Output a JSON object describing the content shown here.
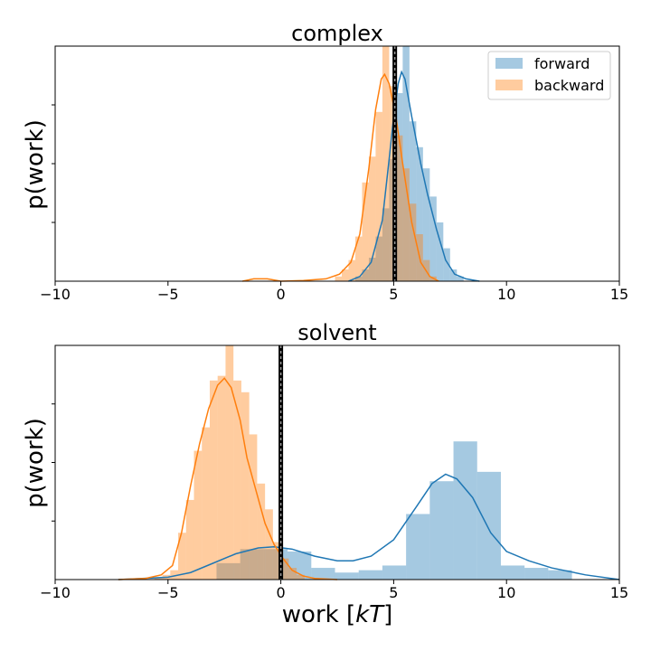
{
  "chart_data": [
    {
      "type": "histogram",
      "title": "complex",
      "xlabel": "",
      "ylabel": "p(work)",
      "xlim": [
        -10,
        15
      ],
      "ylim": [
        0,
        1.0
      ],
      "xticks": [
        -10,
        -5,
        0,
        5,
        10,
        15
      ],
      "xtick_labels": [
        "−10",
        "−5",
        "0",
        "5",
        "10",
        "15"
      ],
      "legend_position": "top-right",
      "vline": 5.05,
      "series": [
        {
          "name": "forward",
          "color": "#1f77b4",
          "bin_width": 0.3,
          "bins": [
            [
              3.3,
              0.02
            ],
            [
              3.6,
              0.05
            ],
            [
              3.9,
              0.1
            ],
            [
              4.2,
              0.19
            ],
            [
              4.5,
              0.31
            ],
            [
              4.8,
              0.52
            ],
            [
              5.1,
              0.8
            ],
            [
              5.4,
              1.0
            ],
            [
              5.7,
              0.68
            ],
            [
              6.0,
              0.57
            ],
            [
              6.3,
              0.48
            ],
            [
              6.6,
              0.36
            ],
            [
              6.9,
              0.25
            ],
            [
              7.2,
              0.14
            ],
            [
              7.5,
              0.05
            ],
            [
              7.8,
              0.02
            ]
          ],
          "kde": [
            [
              3.0,
              0.0
            ],
            [
              3.5,
              0.02
            ],
            [
              4.0,
              0.08
            ],
            [
              4.5,
              0.26
            ],
            [
              4.8,
              0.52
            ],
            [
              5.0,
              0.7
            ],
            [
              5.2,
              0.84
            ],
            [
              5.35,
              0.89
            ],
            [
              5.5,
              0.86
            ],
            [
              5.8,
              0.7
            ],
            [
              6.2,
              0.5
            ],
            [
              6.5,
              0.37
            ],
            [
              6.9,
              0.22
            ],
            [
              7.3,
              0.09
            ],
            [
              7.7,
              0.03
            ],
            [
              8.2,
              0.01
            ],
            [
              8.8,
              0.0
            ]
          ]
        },
        {
          "name": "backward",
          "color": "#ff7f0e",
          "bin_width": 0.3,
          "bins": [
            [
              2.4,
              0.02
            ],
            [
              2.7,
              0.05
            ],
            [
              3.0,
              0.09
            ],
            [
              3.3,
              0.19
            ],
            [
              3.6,
              0.42
            ],
            [
              3.9,
              0.53
            ],
            [
              4.2,
              0.72
            ],
            [
              4.5,
              1.0
            ],
            [
              4.8,
              0.83
            ],
            [
              5.1,
              0.62
            ],
            [
              5.4,
              0.48
            ],
            [
              5.7,
              0.33
            ],
            [
              6.0,
              0.2
            ],
            [
              6.3,
              0.09
            ],
            [
              6.6,
              0.02
            ]
          ],
          "kde": [
            [
              -1.7,
              0.0
            ],
            [
              -1.2,
              0.01
            ],
            [
              -0.6,
              0.01
            ],
            [
              0.0,
              0.0
            ],
            [
              1.0,
              0.003
            ],
            [
              2.0,
              0.01
            ],
            [
              2.6,
              0.03
            ],
            [
              3.1,
              0.08
            ],
            [
              3.5,
              0.2
            ],
            [
              3.9,
              0.48
            ],
            [
              4.2,
              0.73
            ],
            [
              4.45,
              0.86
            ],
            [
              4.6,
              0.88
            ],
            [
              4.8,
              0.84
            ],
            [
              5.1,
              0.7
            ],
            [
              5.4,
              0.5
            ],
            [
              5.8,
              0.25
            ],
            [
              6.2,
              0.08
            ],
            [
              6.6,
              0.02
            ],
            [
              7.0,
              0.0
            ]
          ]
        }
      ]
    },
    {
      "type": "histogram",
      "title": "solvent",
      "xlabel": "work [kT]",
      "ylabel": "p(work)",
      "xlim": [
        -10,
        15
      ],
      "ylim": [
        0,
        1.0
      ],
      "xticks": [
        -10,
        -5,
        0,
        5,
        10,
        15
      ],
      "xtick_labels": [
        "−10",
        "−5",
        "0",
        "5",
        "10",
        "15"
      ],
      "vline": 0.0,
      "series": [
        {
          "name": "forward",
          "color": "#1f77b4",
          "bin_width": 1.05,
          "bins": [
            [
              -2.85,
              0.07
            ],
            [
              -1.8,
              0.13
            ],
            [
              -0.75,
              0.13
            ],
            [
              0.3,
              0.12
            ],
            [
              1.35,
              0.05
            ],
            [
              2.4,
              0.03
            ],
            [
              3.45,
              0.04
            ],
            [
              4.5,
              0.06
            ],
            [
              5.55,
              0.28
            ],
            [
              6.6,
              0.42
            ],
            [
              7.65,
              0.59
            ],
            [
              8.7,
              0.46
            ],
            [
              9.75,
              0.06
            ],
            [
              10.8,
              0.05
            ],
            [
              11.85,
              0.04
            ],
            [
              12.9,
              0.0
            ]
          ],
          "kde": [
            [
              -7.2,
              0.0
            ],
            [
              -5.0,
              0.01
            ],
            [
              -4.0,
              0.03
            ],
            [
              -3.0,
              0.07
            ],
            [
              -2.0,
              0.11
            ],
            [
              -1.0,
              0.135
            ],
            [
              -0.3,
              0.14
            ],
            [
              0.5,
              0.13
            ],
            [
              1.5,
              0.1
            ],
            [
              2.5,
              0.08
            ],
            [
              3.2,
              0.08
            ],
            [
              4.0,
              0.1
            ],
            [
              5.0,
              0.17
            ],
            [
              6.0,
              0.31
            ],
            [
              6.7,
              0.41
            ],
            [
              7.3,
              0.45
            ],
            [
              7.8,
              0.43
            ],
            [
              8.5,
              0.35
            ],
            [
              9.3,
              0.2
            ],
            [
              10.0,
              0.12
            ],
            [
              11.0,
              0.08
            ],
            [
              12.0,
              0.05
            ],
            [
              13.5,
              0.02
            ],
            [
              15.0,
              0.0
            ]
          ]
        },
        {
          "name": "backward",
          "color": "#ff7f0e",
          "bin_width": 0.35,
          "bins": [
            [
              -5.6,
              0.01
            ],
            [
              -5.25,
              0.02
            ],
            [
              -4.9,
              0.04
            ],
            [
              -4.55,
              0.2
            ],
            [
              -4.2,
              0.34
            ],
            [
              -3.85,
              0.55
            ],
            [
              -3.5,
              0.65
            ],
            [
              -3.15,
              0.85
            ],
            [
              -2.8,
              0.87
            ],
            [
              -2.45,
              1.0
            ],
            [
              -2.1,
              0.85
            ],
            [
              -1.75,
              0.8
            ],
            [
              -1.4,
              0.62
            ],
            [
              -1.05,
              0.41
            ],
            [
              -0.7,
              0.3
            ],
            [
              -0.35,
              0.16
            ],
            [
              0.0,
              0.09
            ],
            [
              0.35,
              0.05
            ],
            [
              0.7,
              0.02
            ]
          ],
          "kde": [
            [
              -7.2,
              0.0
            ],
            [
              -6.0,
              0.005
            ],
            [
              -5.3,
              0.02
            ],
            [
              -4.8,
              0.06
            ],
            [
              -4.4,
              0.2
            ],
            [
              -4.0,
              0.4
            ],
            [
              -3.6,
              0.58
            ],
            [
              -3.2,
              0.73
            ],
            [
              -2.8,
              0.83
            ],
            [
              -2.5,
              0.86
            ],
            [
              -2.2,
              0.82
            ],
            [
              -1.8,
              0.68
            ],
            [
              -1.5,
              0.52
            ],
            [
              -1.1,
              0.38
            ],
            [
              -0.7,
              0.24
            ],
            [
              -0.3,
              0.15
            ],
            [
              0.1,
              0.09
            ],
            [
              0.5,
              0.04
            ],
            [
              1.0,
              0.015
            ],
            [
              1.5,
              0.005
            ],
            [
              2.5,
              0.0
            ]
          ]
        }
      ]
    }
  ]
}
